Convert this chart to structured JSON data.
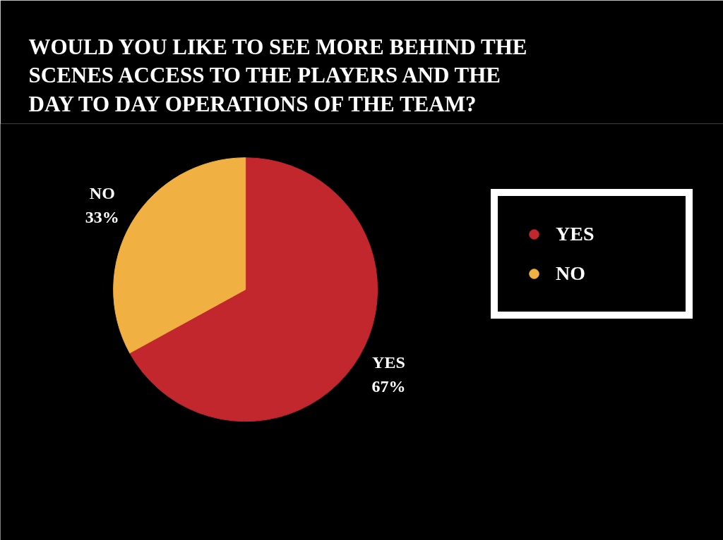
{
  "chart_data": {
    "type": "pie",
    "title": "WOULD YOU LIKE TO SEE MORE BEHIND THE SCENES ACCESS TO THE PLAYERS AND THE DAY TO DAY OPERATIONS OF THE TEAM?",
    "categories": [
      "YES",
      "NO"
    ],
    "values": [
      67,
      33
    ],
    "colors": [
      "#c1272d",
      "#f0b042"
    ],
    "value_labels": [
      "67%",
      "33%"
    ],
    "legend": "right"
  }
}
